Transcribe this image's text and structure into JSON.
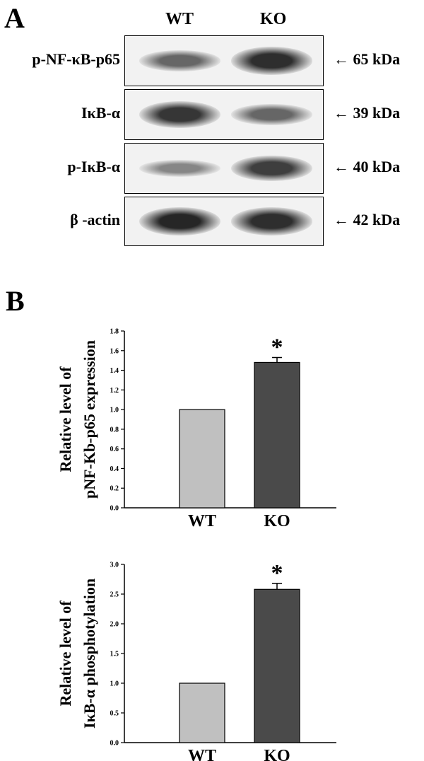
{
  "panel_a": {
    "letter": "A",
    "lanes": [
      "WT",
      "KO"
    ],
    "rows": [
      {
        "label": "p-NF-κB-p65",
        "kda": "65 kDa",
        "wt": 0.55,
        "ko": 0.9
      },
      {
        "label": "IκB-α",
        "kda": "39 kDa",
        "wt": 0.85,
        "ko": 0.55
      },
      {
        "label": "p-IκB-α",
        "kda": "40 kDa",
        "wt": 0.35,
        "ko": 0.8
      },
      {
        "label": "β -actin",
        "kda": "42 kDa",
        "wt": 0.95,
        "ko": 0.9
      }
    ],
    "arrow": "←"
  },
  "panel_b": {
    "letter": "B"
  },
  "chart_data": [
    {
      "type": "bar",
      "categories": [
        "WT",
        "KO"
      ],
      "values": [
        1.0,
        1.48
      ],
      "error": [
        0,
        0.05
      ],
      "significance": [
        "",
        "*"
      ],
      "ylabel_line1": "Relative level of",
      "ylabel_line2": "pNF-Kb-p65 expression",
      "xlabel": "",
      "ylim": [
        0,
        1.8
      ],
      "yticks": [
        "0.0",
        "0.2",
        "0.4",
        "0.6",
        "0.8",
        "1.0",
        "1.2",
        "1.4",
        "1.6",
        "1.8"
      ],
      "colors": [
        "#c0c0c0",
        "#4a4a4a"
      ]
    },
    {
      "type": "bar",
      "categories": [
        "WT",
        "KO"
      ],
      "values": [
        1.0,
        2.58
      ],
      "error": [
        0,
        0.1
      ],
      "significance": [
        "",
        "*"
      ],
      "ylabel_line1": "Relative level of",
      "ylabel_line2": "IκB-α phosphotylation",
      "xlabel": "",
      "ylim": [
        0,
        3.0
      ],
      "yticks": [
        "0.0",
        "0.5",
        "1.0",
        "1.5",
        "2.0",
        "2.5",
        "3.0"
      ],
      "colors": [
        "#c0c0c0",
        "#4a4a4a"
      ]
    }
  ]
}
